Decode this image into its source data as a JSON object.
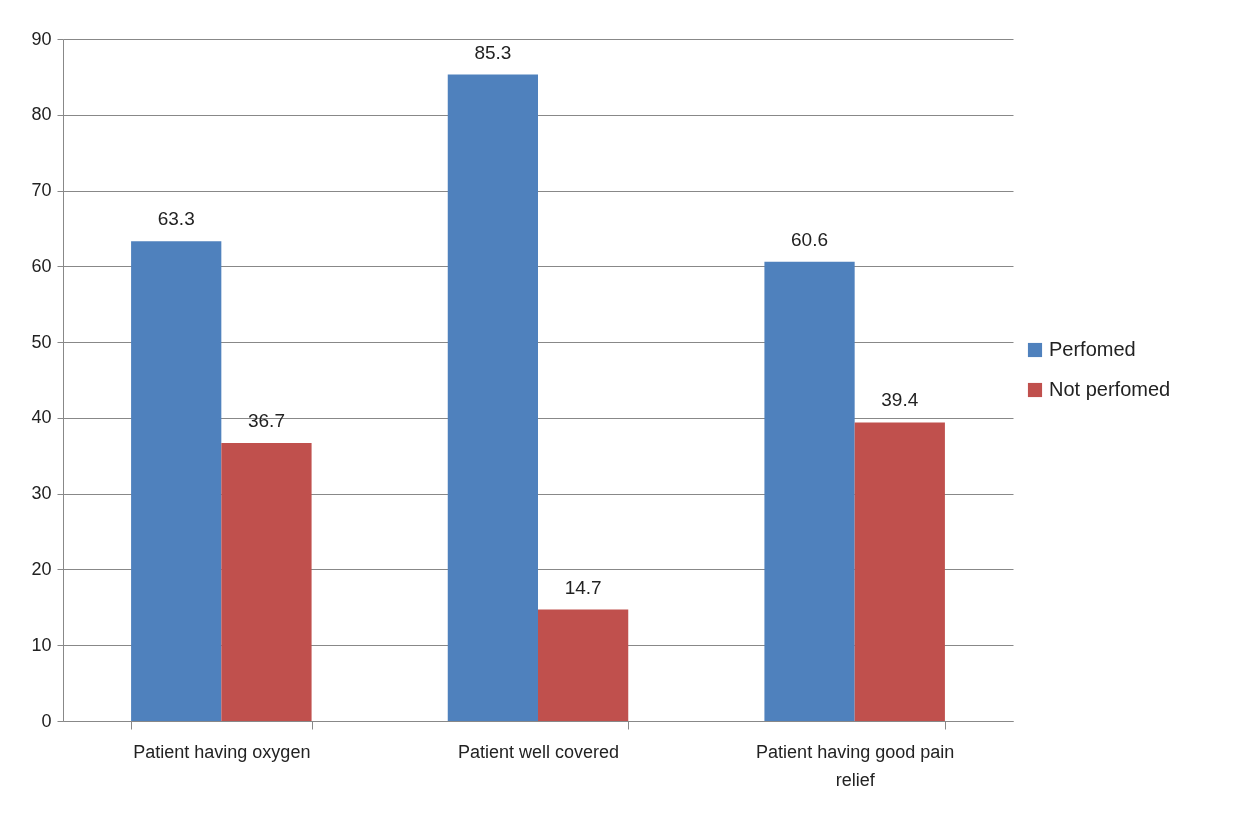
{
  "chart_data": {
    "type": "bar",
    "categories": [
      "Patient having oxygen",
      "Patient well covered",
      "Patient having good pain relief"
    ],
    "series": [
      {
        "name": "Perfomed",
        "color": "#4f81bd",
        "values": [
          63.3,
          85.3,
          60.6
        ]
      },
      {
        "name": "Not perfomed",
        "color": "#c0504d",
        "values": [
          36.7,
          14.7,
          39.4
        ]
      }
    ],
    "ylim": [
      0,
      90
    ],
    "yticks": [
      0,
      10,
      20,
      30,
      40,
      50,
      60,
      70,
      80,
      90
    ],
    "grid": "y",
    "legend": "right",
    "data_labels": true
  }
}
